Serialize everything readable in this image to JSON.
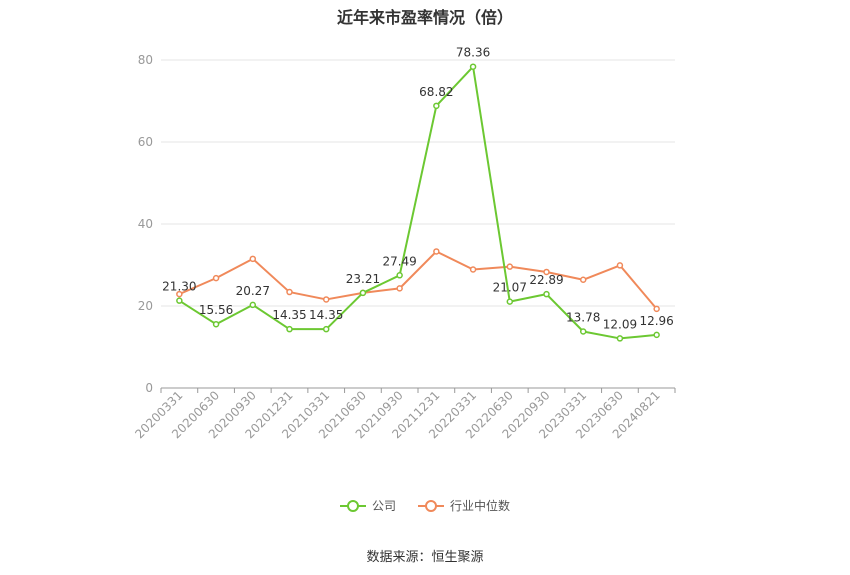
{
  "chart_data": {
    "type": "line",
    "title": "近年来市盈率情况（倍）",
    "categories": [
      "20200331",
      "20200630",
      "20200930",
      "20201231",
      "20210331",
      "20210630",
      "20210930",
      "20211231",
      "20220331",
      "20220630",
      "20220930",
      "20230331",
      "20230630",
      "20240821"
    ],
    "ylim": [
      0,
      80
    ],
    "yticks": [
      0,
      20,
      40,
      60,
      80
    ],
    "grid": true,
    "legend_position": "bottom",
    "series": [
      {
        "name": "公司",
        "color": "#6cc832",
        "values": [
          21.3,
          15.56,
          20.27,
          14.35,
          14.35,
          23.21,
          27.49,
          68.82,
          78.36,
          21.07,
          22.89,
          13.78,
          12.09,
          12.96
        ],
        "labels": [
          "21.30",
          "15.56",
          "20.27",
          "14.35",
          "14.35",
          "23.21",
          "27.49",
          "68.82",
          "78.36",
          "21.07",
          "22.89",
          "13.78",
          "12.09",
          "12.96"
        ]
      },
      {
        "name": "行业中位数",
        "color": "#f0895a",
        "values": [
          22.9,
          26.8,
          31.5,
          23.4,
          21.6,
          23.2,
          24.3,
          33.3,
          28.9,
          29.6,
          28.3,
          26.4,
          29.9,
          19.3
        ]
      }
    ]
  },
  "source": "数据来源：恒生聚源"
}
